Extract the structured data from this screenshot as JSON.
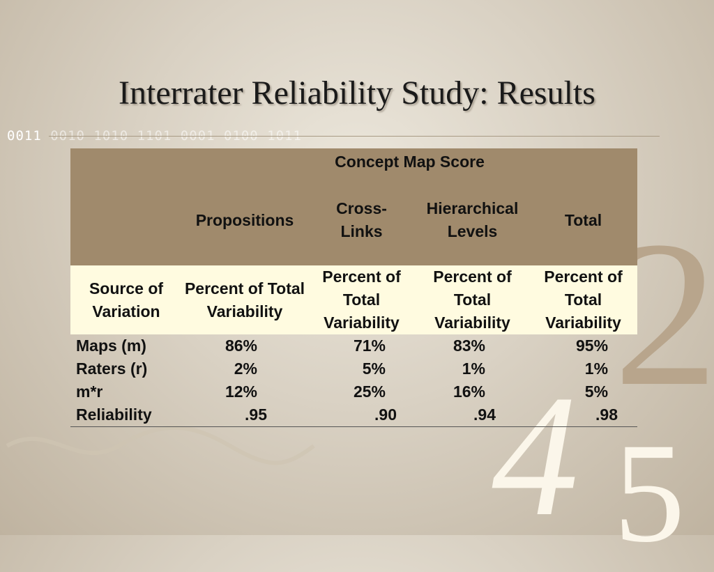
{
  "slide": {
    "title": "Interrater Reliability Study: Results",
    "binary_bright": "0011 ",
    "binary_faded": "0010 1010 1101 0001 0100 1011"
  },
  "decor": {
    "digit_2": "2",
    "digit_4": "4",
    "digit_5": "5"
  },
  "table": {
    "group_header": "Concept Map Score",
    "columns": [
      "Propositions",
      "Cross-\nLinks",
      "Hierarchical\nLevels",
      "Total"
    ],
    "subheader_row_label": "Source of Variation",
    "subheaders": [
      "Percent of Total Variability",
      "Percent of Total Variability",
      "Percent of Total Variability",
      "Percent of Total Variability"
    ],
    "rows": [
      {
        "label": "Maps (m)",
        "values": [
          "86%",
          "71%",
          "83%",
          "95%"
        ]
      },
      {
        "label": "Raters (r)",
        "values": [
          "2%",
          "5%",
          "1%",
          "1%"
        ]
      },
      {
        "label": "m*r",
        "values": [
          "12%",
          "25%",
          "16%",
          "5%"
        ]
      },
      {
        "label": "Reliability",
        "values": [
          ".95",
          ".90",
          ".94",
          ".98"
        ]
      }
    ]
  },
  "colors": {
    "header_bg": "#a08a6c",
    "subheader_bg": "#fffbe0"
  }
}
